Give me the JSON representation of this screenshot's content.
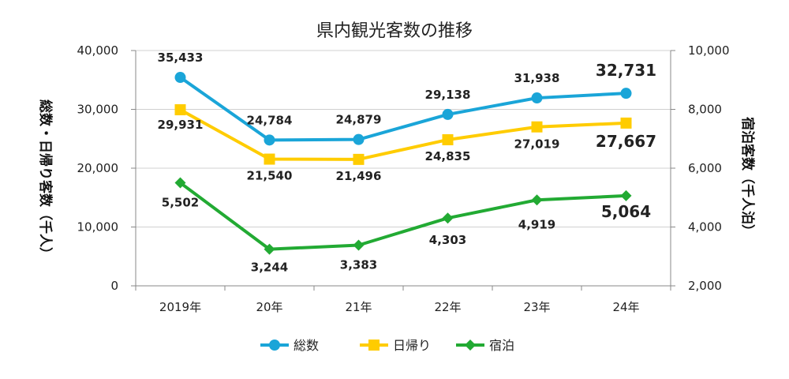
{
  "chart_data": {
    "type": "line",
    "title": "県内観光客数の推移",
    "categories": [
      "2019年",
      "20年",
      "21年",
      "22年",
      "23年",
      "24年"
    ],
    "y_left": {
      "label": "総数・日帰り客数（千人）",
      "range": [
        0,
        40000
      ],
      "ticks": [
        "0",
        "10,000",
        "20,000",
        "30,000",
        "40,000"
      ]
    },
    "y_right": {
      "label": "宿泊客数（千人泊）",
      "range": [
        2000,
        10000
      ],
      "ticks": [
        "2,000",
        "4,000",
        "6,000",
        "8,000",
        "10,000"
      ]
    },
    "grid": true,
    "legend_position": "bottom",
    "series": [
      {
        "name": "総数",
        "axis": "left",
        "color": "#1AA5D8",
        "marker": "circle",
        "values": [
          35433,
          24784,
          24879,
          29138,
          31938,
          32731
        ],
        "labels": [
          "35,433",
          "24,784",
          "24,879",
          "29,138",
          "31,938",
          "32,731"
        ]
      },
      {
        "name": "日帰り",
        "axis": "left",
        "color": "#FFCC00",
        "marker": "square",
        "values": [
          29931,
          21540,
          21496,
          24835,
          27019,
          27667
        ],
        "labels": [
          "29,931",
          "21,540",
          "21,496",
          "24,835",
          "27,019",
          "27,667"
        ]
      },
      {
        "name": "宿泊",
        "axis": "right",
        "color": "#22AA33",
        "marker": "diamond",
        "values": [
          5502,
          3244,
          3383,
          4303,
          4919,
          5064
        ],
        "labels": [
          "5,502",
          "3,244",
          "3,383",
          "4,303",
          "4,919",
          "5,064"
        ]
      }
    ]
  }
}
